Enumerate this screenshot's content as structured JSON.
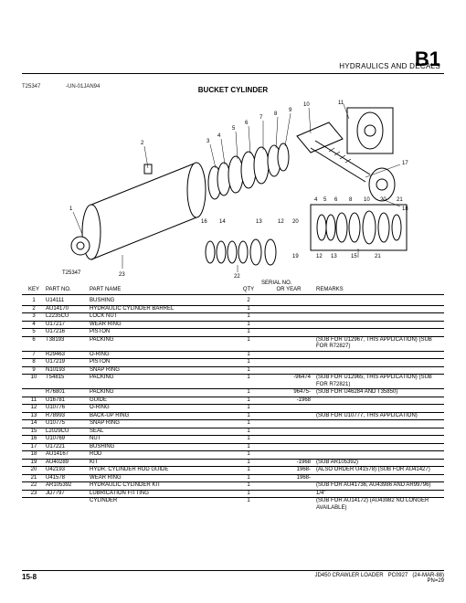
{
  "header": {
    "page_code": "B1",
    "section": "HYDRAULICS AND DECALS",
    "figure_ref": "T25347",
    "figure_date": "-UN-01JAN94",
    "component_title": "BUCKET CYLINDER"
  },
  "diagram": {
    "label_bottom_left": "T25347",
    "callouts": [
      "1",
      "2",
      "3",
      "4",
      "5",
      "6",
      "7",
      "8",
      "9",
      "10",
      "11",
      "12",
      "13",
      "14",
      "15",
      "16",
      "17",
      "18",
      "19",
      "20",
      "21",
      "22",
      "23"
    ]
  },
  "table": {
    "headers": {
      "key": "KEY",
      "part_no": "PART NO.",
      "part_name": "PART NAME",
      "qty": "QTY",
      "serial_top": "SERIAL NO.",
      "serial": "OR YEAR",
      "remarks": "REMARKS"
    },
    "rows": [
      {
        "key": "1",
        "pn": "U14111",
        "name": "BUSHING",
        "qty": "2",
        "serial": "",
        "rem": ""
      },
      {
        "key": "2",
        "pn": "AU14170",
        "name": "HYDRAULIC CYLINDER BARREL",
        "qty": "1",
        "serial": "",
        "rem": ""
      },
      {
        "key": "3",
        "pn": "L2235CU",
        "name": "LOCK NUT",
        "qty": "1",
        "serial": "",
        "rem": ""
      },
      {
        "key": "4",
        "pn": "U17217",
        "name": "WEAR RING",
        "qty": "1",
        "serial": "",
        "rem": ""
      },
      {
        "key": "5",
        "pn": "U17216",
        "name": "PISTON",
        "qty": "1",
        "serial": "",
        "rem": ""
      },
      {
        "key": "6",
        "pn": "T38193",
        "name": "PACKING",
        "qty": "1",
        "serial": "",
        "rem": "(SUB FOR U12967, THIS APPLICATION) (SUB FOR R72827)"
      },
      {
        "key": "7",
        "pn": "R29463",
        "name": "O-RING",
        "qty": "1",
        "serial": "",
        "rem": ""
      },
      {
        "key": "8",
        "pn": "U17219",
        "name": "PISTON",
        "qty": "1",
        "serial": "",
        "rem": ""
      },
      {
        "key": "9",
        "pn": "N10193",
        "name": "SNAP RING",
        "qty": "1",
        "serial": "",
        "rem": ""
      },
      {
        "key": "10",
        "pn": "T54815",
        "name": "PACKING",
        "qty": "1",
        "serial": "-96474",
        "rem": "(SUB FOR U12965, THIS APPLICATION) (SUB FOR R72821)"
      },
      {
        "key": "",
        "pn": "R76801",
        "name": "PACKING",
        "qty": "1",
        "serial": "96475-",
        "rem": "(SUB FOR U46284 AND T35850)"
      },
      {
        "key": "11",
        "pn": "U16781",
        "name": "GUIDE",
        "qty": "1",
        "serial": "-1968",
        "rem": ""
      },
      {
        "key": "12",
        "pn": "U10776",
        "name": "O-RING",
        "qty": "1",
        "serial": "",
        "rem": ""
      },
      {
        "key": "13",
        "pn": "R78993",
        "name": "BACK-UP RING",
        "qty": "1",
        "serial": "",
        "rem": "(SUB FOR U10777, THIS APPLICATION)"
      },
      {
        "key": "14",
        "pn": "U10775",
        "name": "SNAP RING",
        "qty": "1",
        "serial": "",
        "rem": ""
      },
      {
        "key": "15",
        "pn": "L2029CU",
        "name": "SEAL",
        "qty": "1",
        "serial": "",
        "rem": ""
      },
      {
        "key": "16",
        "pn": "U10769",
        "name": "NUT",
        "qty": "1",
        "serial": "",
        "rem": ""
      },
      {
        "key": "17",
        "pn": "U17221",
        "name": "BUSHING",
        "qty": "1",
        "serial": "",
        "rem": ""
      },
      {
        "key": "18",
        "pn": "AU14167",
        "name": "ROD",
        "qty": "1",
        "serial": "",
        "rem": ""
      },
      {
        "key": "19",
        "pn": "AU40289",
        "name": "KIT",
        "qty": "1",
        "serial": "-1968",
        "rem": "(SUB AR105392)"
      },
      {
        "key": "20",
        "pn": "U42193",
        "name": "HYDR. CYLINDER ROD GUIDE",
        "qty": "1",
        "serial": "1968-",
        "rem": "(ALSO ORDER U41578) (SUB FOR AU41427)"
      },
      {
        "key": "21",
        "pn": "U41578",
        "name": "WEAR RING",
        "qty": "1",
        "serial": "1968-",
        "rem": ""
      },
      {
        "key": "22",
        "pn": "AR105392",
        "name": "HYDRAULIC CYLINDER KIT",
        "qty": "1",
        "serial": "",
        "rem": "(SUB FOR AU41736, AU43986 AND AR99796)"
      },
      {
        "key": "23",
        "pn": "JD7797",
        "name": "LUBRICATION FITTING",
        "qty": "1",
        "serial": "",
        "rem": "1/4\""
      },
      {
        "key": "",
        "pn": "",
        "name": "CYLINDER",
        "qty": "1",
        "serial": "",
        "rem": "(SUB FOR AU14172) (AU43982 NO LONGER AVAILABLE)"
      }
    ]
  },
  "footer": {
    "page": "15-8",
    "model": "JD450 CRAWLER LOADER",
    "pc": "PC0927",
    "date": "(24-MAR-88)",
    "pn": "PN=29"
  }
}
